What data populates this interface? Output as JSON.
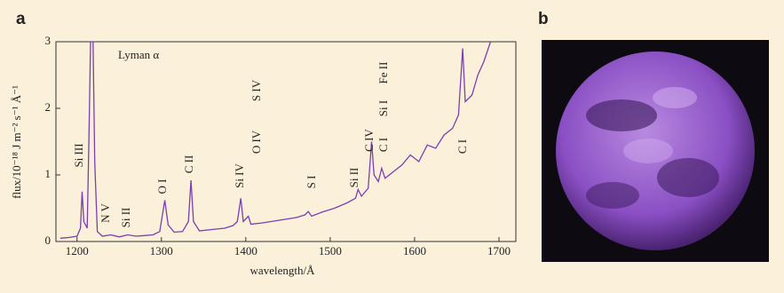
{
  "panel_labels": [
    "a",
    "b"
  ],
  "chart_data": {
    "type": "line",
    "xlabel": "wavelength/Å",
    "ylabel": "flux/10⁻¹⁸ J m⁻² s⁻¹ Å⁻¹",
    "color": "#7b3fb0",
    "x": [
      1180,
      1190,
      1200,
      1204,
      1206,
      1208,
      1212,
      1214,
      1216,
      1219,
      1221,
      1224,
      1230,
      1240,
      1250,
      1260,
      1270,
      1280,
      1290,
      1298,
      1304,
      1308,
      1315,
      1325,
      1332,
      1335,
      1338,
      1345,
      1360,
      1375,
      1385,
      1390,
      1394,
      1397,
      1403,
      1406,
      1420,
      1440,
      1460,
      1470,
      1474,
      1478,
      1490,
      1505,
      1520,
      1530,
      1533,
      1537,
      1545,
      1549,
      1552,
      1557,
      1561,
      1565,
      1575,
      1585,
      1595,
      1605,
      1615,
      1625,
      1635,
      1645,
      1652,
      1657,
      1660,
      1668,
      1675,
      1682,
      1690
    ],
    "values": [
      0.05,
      0.06,
      0.08,
      0.2,
      0.75,
      0.3,
      0.2,
      1.5,
      3,
      3,
      1.2,
      0.15,
      0.08,
      0.1,
      0.07,
      0.1,
      0.08,
      0.09,
      0.1,
      0.15,
      0.62,
      0.25,
      0.14,
      0.15,
      0.3,
      0.92,
      0.3,
      0.16,
      0.18,
      0.2,
      0.24,
      0.3,
      0.65,
      0.3,
      0.38,
      0.26,
      0.28,
      0.32,
      0.36,
      0.4,
      0.45,
      0.38,
      0.44,
      0.5,
      0.58,
      0.65,
      0.78,
      0.68,
      0.8,
      1.5,
      1.0,
      0.9,
      1.1,
      0.95,
      1.05,
      1.15,
      1.3,
      1.2,
      1.45,
      1.4,
      1.6,
      1.7,
      1.9,
      2.9,
      2.1,
      2.2,
      2.5,
      2.7,
      3
    ],
    "xlim": [
      1175,
      1720
    ],
    "xticks": [
      1200,
      1300,
      1400,
      1500,
      1600,
      1700
    ],
    "ylim": [
      0,
      3
    ],
    "yticks": [
      0,
      1,
      2,
      3
    ],
    "annotations": [
      "Si III",
      "Lyman α",
      "N V",
      "Si II",
      "O I",
      "C II",
      "Si IV",
      "O IV",
      "S IV",
      "S I",
      "Si II",
      "C IV",
      "C I",
      "Si I",
      "Fe II",
      "C I"
    ]
  }
}
